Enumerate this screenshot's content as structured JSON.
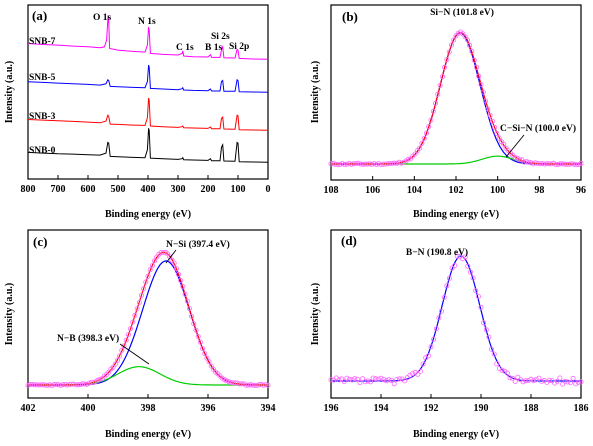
{
  "chart_data": [
    {
      "type": "line",
      "panel_label": "(a)",
      "xlabel": "Binding energy (eV)",
      "ylabel": "Intensity (a.u.)",
      "xlim": [
        800,
        0
      ],
      "x_ticks": [
        "800",
        "700",
        "600",
        "500",
        "400",
        "300",
        "200",
        "100",
        "0"
      ],
      "series": [
        {
          "name": "SNB-7",
          "color": "#ff00ff",
          "baseline": 3.0,
          "points": [
            [
              800,
              0.5
            ],
            [
              750,
              0.47
            ],
            [
              700,
              0.45
            ],
            [
              650,
              0.42
            ],
            [
              600,
              0.4
            ],
            [
              560,
              0.37
            ],
            [
              545,
              0.4
            ],
            [
              538,
              0.6
            ],
            [
              533,
              1.35
            ],
            [
              531,
              1.2
            ],
            [
              528,
              0.35
            ],
            [
              500,
              0.3
            ],
            [
              450,
              0.26
            ],
            [
              410,
              0.24
            ],
            [
              402,
              0.45
            ],
            [
              398,
              1.0
            ],
            [
              396,
              0.9
            ],
            [
              392,
              0.2
            ],
            [
              350,
              0.17
            ],
            [
              300,
              0.15
            ],
            [
              286,
              0.2
            ],
            [
              284,
              0.28
            ],
            [
              281,
              0.12
            ],
            [
              250,
              0.1
            ],
            [
              200,
              0.09
            ],
            [
              192,
              0.16
            ],
            [
              188,
              0.08
            ],
            [
              160,
              0.08
            ],
            [
              154,
              0.35
            ],
            [
              151,
              0.4
            ],
            [
              147,
              0.07
            ],
            [
              110,
              0.06
            ],
            [
              103,
              0.32
            ],
            [
              100,
              0.3
            ],
            [
              96,
              0.05
            ],
            [
              50,
              0.03
            ],
            [
              0,
              0.02
            ]
          ]
        },
        {
          "name": "SNB-5",
          "color": "#0000ff",
          "baseline": 2.0,
          "points": [
            [
              800,
              0.34
            ],
            [
              750,
              0.32
            ],
            [
              700,
              0.3
            ],
            [
              650,
              0.28
            ],
            [
              600,
              0.26
            ],
            [
              560,
              0.24
            ],
            [
              540,
              0.28
            ],
            [
              534,
              0.4
            ],
            [
              531,
              0.38
            ],
            [
              526,
              0.2
            ],
            [
              500,
              0.19
            ],
            [
              450,
              0.17
            ],
            [
              410,
              0.16
            ],
            [
              402,
              0.35
            ],
            [
              398,
              0.85
            ],
            [
              396,
              0.78
            ],
            [
              392,
              0.14
            ],
            [
              350,
              0.12
            ],
            [
              300,
              0.1
            ],
            [
              286,
              0.13
            ],
            [
              284,
              0.16
            ],
            [
              281,
              0.09
            ],
            [
              250,
              0.08
            ],
            [
              200,
              0.07
            ],
            [
              192,
              0.12
            ],
            [
              188,
              0.06
            ],
            [
              160,
              0.06
            ],
            [
              155,
              0.35
            ],
            [
              151,
              0.38
            ],
            [
              147,
              0.05
            ],
            [
              110,
              0.05
            ],
            [
              103,
              0.4
            ],
            [
              100,
              0.38
            ],
            [
              96,
              0.04
            ],
            [
              50,
              0.03
            ],
            [
              0,
              0.02
            ]
          ]
        },
        {
          "name": "SNB-3",
          "color": "#ff0000",
          "baseline": 1.0,
          "points": [
            [
              800,
              0.35
            ],
            [
              750,
              0.33
            ],
            [
              700,
              0.31
            ],
            [
              650,
              0.29
            ],
            [
              600,
              0.27
            ],
            [
              560,
              0.25
            ],
            [
              540,
              0.3
            ],
            [
              534,
              0.48
            ],
            [
              531,
              0.45
            ],
            [
              526,
              0.21
            ],
            [
              500,
              0.2
            ],
            [
              450,
              0.18
            ],
            [
              410,
              0.17
            ],
            [
              402,
              0.4
            ],
            [
              398,
              1.0
            ],
            [
              396,
              0.92
            ],
            [
              392,
              0.15
            ],
            [
              350,
              0.13
            ],
            [
              300,
              0.11
            ],
            [
              286,
              0.13
            ],
            [
              284,
              0.15
            ],
            [
              281,
              0.1
            ],
            [
              250,
              0.09
            ],
            [
              200,
              0.08
            ],
            [
              192,
              0.12
            ],
            [
              188,
              0.07
            ],
            [
              160,
              0.07
            ],
            [
              155,
              0.38
            ],
            [
              151,
              0.42
            ],
            [
              147,
              0.06
            ],
            [
              110,
              0.05
            ],
            [
              103,
              0.48
            ],
            [
              100,
              0.46
            ],
            [
              96,
              0.04
            ],
            [
              50,
              0.03
            ],
            [
              0,
              0.02
            ]
          ]
        },
        {
          "name": "SNB-0",
          "color": "#000000",
          "baseline": 0.0,
          "points": [
            [
              800,
              0.32
            ],
            [
              750,
              0.3
            ],
            [
              700,
              0.28
            ],
            [
              650,
              0.27
            ],
            [
              600,
              0.25
            ],
            [
              560,
              0.24
            ],
            [
              540,
              0.3
            ],
            [
              534,
              0.62
            ],
            [
              531,
              0.6
            ],
            [
              526,
              0.2
            ],
            [
              500,
              0.19
            ],
            [
              450,
              0.17
            ],
            [
              410,
              0.16
            ],
            [
              402,
              0.4
            ],
            [
              398,
              1.05
            ],
            [
              396,
              0.98
            ],
            [
              392,
              0.15
            ],
            [
              350,
              0.13
            ],
            [
              300,
              0.11
            ],
            [
              286,
              0.13
            ],
            [
              284,
              0.16
            ],
            [
              281,
              0.1
            ],
            [
              250,
              0.09
            ],
            [
              200,
              0.08
            ],
            [
              192,
              0.13
            ],
            [
              188,
              0.07
            ],
            [
              160,
              0.07
            ],
            [
              155,
              0.48
            ],
            [
              151,
              0.55
            ],
            [
              147,
              0.06
            ],
            [
              110,
              0.05
            ],
            [
              103,
              0.62
            ],
            [
              100,
              0.6
            ],
            [
              96,
              0.04
            ],
            [
              50,
              0.03
            ],
            [
              0,
              0.02
            ]
          ]
        }
      ],
      "annotations": [
        "O 1s",
        "N 1s",
        "C 1s",
        "B 1s",
        "Si 2s",
        "Si 2p"
      ]
    },
    {
      "type": "line",
      "panel_label": "(b)",
      "xlabel": "Binding energy (eV)",
      "ylabel": "Intensity (a.u.)",
      "xlim": [
        108,
        96
      ],
      "x_ticks": [
        "108",
        "106",
        "104",
        "102",
        "100",
        "98",
        "96"
      ],
      "peaks": [
        {
          "label": "Si−N (101.8 eV)",
          "center": 101.8,
          "height": 1.0,
          "sigma": 0.95,
          "color": "#0000ff"
        },
        {
          "label": "C−Si−N (100.0 eV)",
          "center": 100.0,
          "height": 0.06,
          "sigma": 0.75,
          "color": "#00cc00"
        }
      ],
      "sum_color": "#ff0000",
      "points_color": "#ff66ff"
    },
    {
      "type": "line",
      "panel_label": "(c)",
      "xlabel": "Binding energy (eV)",
      "ylabel": "Intensity (a.u.)",
      "xlim": [
        402,
        394
      ],
      "x_ticks": [
        "402",
        "400",
        "398",
        "396",
        "394"
      ],
      "peaks": [
        {
          "label": "N−Si (397.4 eV)",
          "center": 397.4,
          "height": 0.88,
          "sigma": 0.78,
          "color": "#0000ff"
        },
        {
          "label": "N−B (398.3 eV)",
          "center": 398.3,
          "height": 0.13,
          "sigma": 0.7,
          "color": "#00cc00"
        }
      ],
      "sum_color": "#ff0000",
      "points_color": "#ff66ff"
    },
    {
      "type": "line",
      "panel_label": "(d)",
      "xlabel": "Binding energy (eV)",
      "ylabel": "Intensity (a.u.)",
      "xlim": [
        196,
        186
      ],
      "x_ticks": [
        "196",
        "194",
        "192",
        "190",
        "188",
        "186"
      ],
      "peaks": [
        {
          "label": "B−N (190.8 eV)",
          "center": 190.8,
          "height": 1.0,
          "sigma": 0.75,
          "color": "#0000ff"
        }
      ],
      "points_color": "#ff66ff"
    }
  ]
}
